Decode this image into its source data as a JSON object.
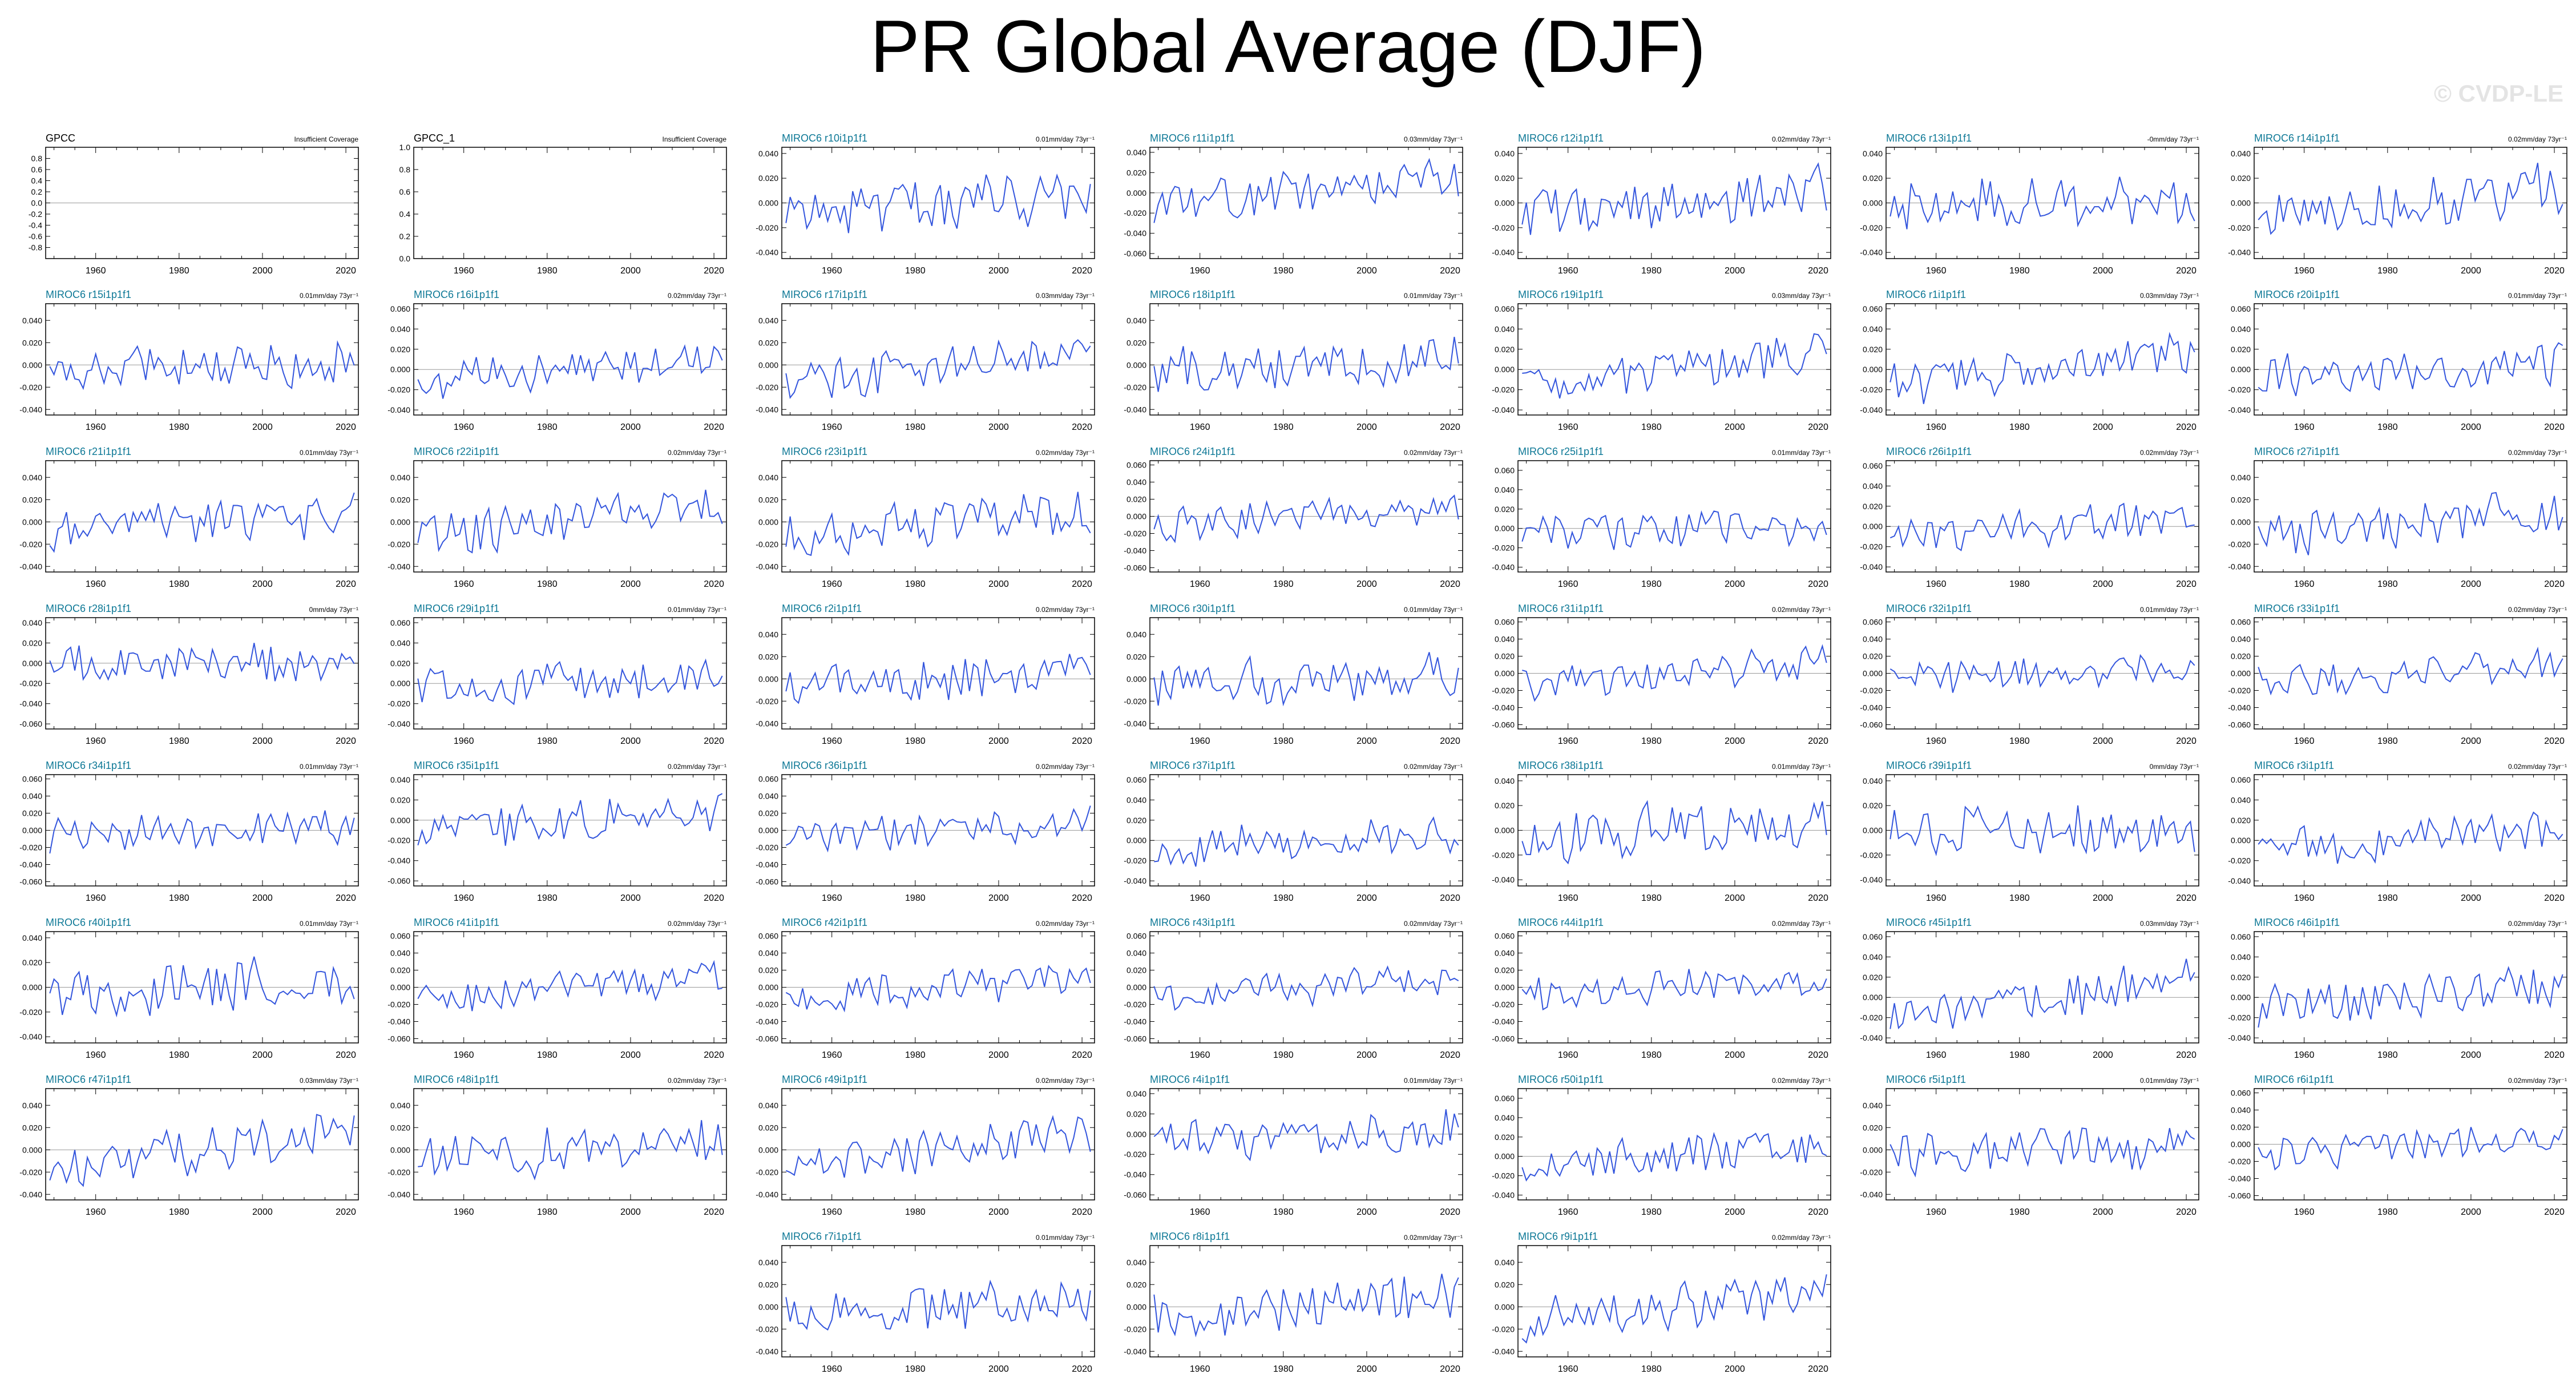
{
  "page": {
    "title": "PR Global Average (DJF)",
    "watermark": "© CVDP-LE"
  },
  "chart_data": [
    {
      "type": "line",
      "id": "gpcc",
      "title": "GPCC",
      "title_color": "#000000",
      "right_label": "Insufficient Coverage",
      "ylim": [
        -1,
        1
      ],
      "yticks": [
        "-0.8",
        "-0.6",
        "-0.4",
        "-0.2",
        "0.0",
        "0.2",
        "0.4",
        "0.6",
        "0.8"
      ],
      "xticks": [
        "1960",
        "1980",
        "2000",
        "2020"
      ],
      "xlim": [
        1948,
        2023
      ],
      "series": [],
      "zero_line": true
    },
    {
      "type": "line",
      "id": "gpcc1",
      "title": "GPCC_1",
      "title_color": "#000000",
      "right_label": "Insufficient Coverage",
      "ylim": [
        0,
        1
      ],
      "yticks": [
        "0.0",
        "0.2",
        "0.4",
        "0.6",
        "0.8",
        "1.0"
      ],
      "xticks": [
        "1960",
        "1980",
        "2000",
        "2020"
      ],
      "xlim": [
        1948,
        2023
      ],
      "series": [],
      "zero_line": false
    },
    {
      "type": "line",
      "id": "r10",
      "title": "MIROC6 r10i1p1f1",
      "right_label": "0.01mm/day 73yr⁻¹",
      "ylim": [
        -0.045,
        0.045
      ],
      "yticks": [
        "-0.040",
        "-0.020",
        "0.000",
        "0.020",
        "0.040"
      ],
      "seed": 10,
      "trend": 0.01
    },
    {
      "type": "line",
      "id": "r11",
      "title": "MIROC6 r11i1p1f1",
      "right_label": "0.03mm/day 73yr⁻¹",
      "ylim": [
        -0.065,
        0.045
      ],
      "yticks": [
        "-0.060",
        "-0.040",
        "-0.020",
        "0.000",
        "0.020",
        "0.040"
      ],
      "seed": 11,
      "trend": 0.03
    },
    {
      "type": "line",
      "id": "r12",
      "title": "MIROC6 r12i1p1f1",
      "right_label": "0.02mm/day 73yr⁻¹",
      "ylim": [
        -0.045,
        0.045
      ],
      "yticks": [
        "-0.040",
        "-0.020",
        "0.000",
        "0.020",
        "0.040"
      ],
      "seed": 12,
      "trend": 0.02
    },
    {
      "type": "line",
      "id": "r13",
      "title": "MIROC6 r13i1p1f1",
      "right_label": "-0mm/day 73yr⁻¹",
      "ylim": [
        -0.045,
        0.045
      ],
      "yticks": [
        "-0.040",
        "-0.020",
        "0.000",
        "0.020",
        "0.040"
      ],
      "seed": 13,
      "trend": 0.0
    },
    {
      "type": "line",
      "id": "r14",
      "title": "MIROC6 r14i1p1f1",
      "right_label": "0.02mm/day 73yr⁻¹",
      "ylim": [
        -0.045,
        0.045
      ],
      "yticks": [
        "-0.040",
        "-0.020",
        "0.000",
        "0.020",
        "0.040"
      ],
      "seed": 14,
      "trend": 0.02
    },
    {
      "type": "line",
      "id": "r15",
      "title": "MIROC6 r15i1p1f1",
      "right_label": "0.01mm/day 73yr⁻¹",
      "ylim": [
        -0.045,
        0.055
      ],
      "yticks": [
        "-0.040",
        "-0.020",
        "0.000",
        "0.020",
        "0.040"
      ],
      "seed": 15,
      "trend": 0.01
    },
    {
      "type": "line",
      "id": "r16",
      "title": "MIROC6 r16i1p1f1",
      "right_label": "0.02mm/day 73yr⁻¹",
      "ylim": [
        -0.045,
        0.065
      ],
      "yticks": [
        "-0.040",
        "-0.020",
        "0.000",
        "0.020",
        "0.040",
        "0.060"
      ],
      "seed": 16,
      "trend": 0.02
    },
    {
      "type": "line",
      "id": "r17",
      "title": "MIROC6 r17i1p1f1",
      "right_label": "0.03mm/day 73yr⁻¹",
      "ylim": [
        -0.045,
        0.055
      ],
      "yticks": [
        "-0.040",
        "-0.020",
        "0.000",
        "0.020",
        "0.040"
      ],
      "seed": 17,
      "trend": 0.03
    },
    {
      "type": "line",
      "id": "r18",
      "title": "MIROC6 r18i1p1f1",
      "right_label": "0.01mm/day 73yr⁻¹",
      "ylim": [
        -0.045,
        0.055
      ],
      "yticks": [
        "-0.040",
        "-0.020",
        "0.000",
        "0.020",
        "0.040"
      ],
      "seed": 18,
      "trend": 0.01
    },
    {
      "type": "line",
      "id": "r19",
      "title": "MIROC6 r19i1p1f1",
      "right_label": "0.03mm/day 73yr⁻¹",
      "ylim": [
        -0.045,
        0.065
      ],
      "yticks": [
        "-0.040",
        "-0.020",
        "0.000",
        "0.020",
        "0.040",
        "0.060"
      ],
      "seed": 19,
      "trend": 0.03
    },
    {
      "type": "line",
      "id": "r1",
      "title": "MIROC6 r1i1p1f1",
      "right_label": "0.03mm/day 73yr⁻¹",
      "ylim": [
        -0.045,
        0.065
      ],
      "yticks": [
        "-0.040",
        "-0.020",
        "0.000",
        "0.020",
        "0.040",
        "0.060"
      ],
      "seed": 1,
      "trend": 0.03
    },
    {
      "type": "line",
      "id": "r20",
      "title": "MIROC6 r20i1p1f1",
      "right_label": "0.01mm/day 73yr⁻¹",
      "ylim": [
        -0.045,
        0.065
      ],
      "yticks": [
        "-0.040",
        "-0.020",
        "0.000",
        "0.020",
        "0.040",
        "0.060"
      ],
      "seed": 20,
      "trend": 0.01
    },
    {
      "type": "line",
      "id": "r21",
      "title": "MIROC6 r21i1p1f1",
      "right_label": "0.01mm/day 73yr⁻¹",
      "ylim": [
        -0.045,
        0.055
      ],
      "yticks": [
        "-0.040",
        "-0.020",
        "0.000",
        "0.020",
        "0.040"
      ],
      "seed": 21,
      "trend": 0.01
    },
    {
      "type": "line",
      "id": "r22",
      "title": "MIROC6 r22i1p1f1",
      "right_label": "0.02mm/day 73yr⁻¹",
      "ylim": [
        -0.045,
        0.055
      ],
      "yticks": [
        "-0.040",
        "-0.020",
        "0.000",
        "0.020",
        "0.040"
      ],
      "seed": 22,
      "trend": 0.02
    },
    {
      "type": "line",
      "id": "r23",
      "title": "MIROC6 r23i1p1f1",
      "right_label": "0.02mm/day 73yr⁻¹",
      "ylim": [
        -0.045,
        0.055
      ],
      "yticks": [
        "-0.040",
        "-0.020",
        "0.000",
        "0.020",
        "0.040"
      ],
      "seed": 23,
      "trend": 0.02
    },
    {
      "type": "line",
      "id": "r24",
      "title": "MIROC6 r24i1p1f1",
      "right_label": "0.02mm/day 73yr⁻¹",
      "ylim": [
        -0.065,
        0.065
      ],
      "yticks": [
        "-0.060",
        "-0.040",
        "-0.020",
        "0.000",
        "0.020",
        "0.040",
        "0.060"
      ],
      "seed": 24,
      "trend": 0.02
    },
    {
      "type": "line",
      "id": "r25",
      "title": "MIROC6 r25i1p1f1",
      "right_label": "0.01mm/day 73yr⁻¹",
      "ylim": [
        -0.045,
        0.07
      ],
      "yticks": [
        "-0.040",
        "-0.020",
        "0.000",
        "0.020",
        "0.040",
        "0.060"
      ],
      "seed": 25,
      "trend": 0.01
    },
    {
      "type": "line",
      "id": "r26",
      "title": "MIROC6 r26i1p1f1",
      "right_label": "0.02mm/day 73yr⁻¹",
      "ylim": [
        -0.045,
        0.065
      ],
      "yticks": [
        "-0.040",
        "-0.020",
        "0.000",
        "0.020",
        "0.040",
        "0.060"
      ],
      "seed": 26,
      "trend": 0.02
    },
    {
      "type": "line",
      "id": "r27",
      "title": "MIROC6 r27i1p1f1",
      "right_label": "0.02mm/day 73yr⁻¹",
      "ylim": [
        -0.045,
        0.055
      ],
      "yticks": [
        "-0.040",
        "-0.020",
        "0.000",
        "0.020",
        "0.040"
      ],
      "seed": 27,
      "trend": 0.02
    },
    {
      "type": "line",
      "id": "r28",
      "title": "MIROC6 r28i1p1f1",
      "right_label": "0mm/day 73yr⁻¹",
      "ylim": [
        -0.065,
        0.045
      ],
      "yticks": [
        "-0.060",
        "-0.040",
        "-0.020",
        "0.000",
        "0.020",
        "0.040"
      ],
      "seed": 28,
      "trend": 0.0
    },
    {
      "type": "line",
      "id": "r29",
      "title": "MIROC6 r29i1p1f1",
      "right_label": "0.01mm/day 73yr⁻¹",
      "ylim": [
        -0.045,
        0.065
      ],
      "yticks": [
        "-0.040",
        "-0.020",
        "0.000",
        "0.020",
        "0.040",
        "0.060"
      ],
      "seed": 29,
      "trend": 0.01
    },
    {
      "type": "line",
      "id": "r2",
      "title": "MIROC6 r2i1p1f1",
      "right_label": "0.02mm/day 73yr⁻¹",
      "ylim": [
        -0.045,
        0.055
      ],
      "yticks": [
        "-0.040",
        "-0.020",
        "0.000",
        "0.020",
        "0.040"
      ],
      "seed": 2,
      "trend": 0.02
    },
    {
      "type": "line",
      "id": "r30",
      "title": "MIROC6 r30i1p1f1",
      "right_label": "0.01mm/day 73yr⁻¹",
      "ylim": [
        -0.045,
        0.055
      ],
      "yticks": [
        "-0.040",
        "-0.020",
        "0.000",
        "0.020",
        "0.040"
      ],
      "seed": 30,
      "trend": 0.01
    },
    {
      "type": "line",
      "id": "r31",
      "title": "MIROC6 r31i1p1f1",
      "right_label": "0.02mm/day 73yr⁻¹",
      "ylim": [
        -0.065,
        0.065
      ],
      "yticks": [
        "-0.060",
        "-0.040",
        "-0.020",
        "0.000",
        "0.020",
        "0.040",
        "0.060"
      ],
      "seed": 31,
      "trend": 0.02
    },
    {
      "type": "line",
      "id": "r32",
      "title": "MIROC6 r32i1p1f1",
      "right_label": "0.01mm/day 73yr⁻¹",
      "ylim": [
        -0.065,
        0.065
      ],
      "yticks": [
        "-0.060",
        "-0.040",
        "-0.020",
        "0.000",
        "0.020",
        "0.040",
        "0.060"
      ],
      "seed": 32,
      "trend": 0.01
    },
    {
      "type": "line",
      "id": "r33",
      "title": "MIROC6 r33i1p1f1",
      "right_label": "0.02mm/day 73yr⁻¹",
      "ylim": [
        -0.065,
        0.065
      ],
      "yticks": [
        "-0.060",
        "-0.040",
        "-0.020",
        "0.000",
        "0.020",
        "0.040",
        "0.060"
      ],
      "seed": 33,
      "trend": 0.02
    },
    {
      "type": "line",
      "id": "r34",
      "title": "MIROC6 r34i1p1f1",
      "right_label": "0.01mm/day 73yr⁻¹",
      "ylim": [
        -0.065,
        0.065
      ],
      "yticks": [
        "-0.060",
        "-0.040",
        "-0.020",
        "0.000",
        "0.020",
        "0.040",
        "0.060"
      ],
      "seed": 34,
      "trend": 0.01
    },
    {
      "type": "line",
      "id": "r35",
      "title": "MIROC6 r35i1p1f1",
      "right_label": "0.02mm/day 73yr⁻¹",
      "ylim": [
        -0.065,
        0.045
      ],
      "yticks": [
        "-0.060",
        "-0.040",
        "-0.020",
        "0.000",
        "0.020",
        "0.040"
      ],
      "seed": 35,
      "trend": 0.02
    },
    {
      "type": "line",
      "id": "r36",
      "title": "MIROC6 r36i1p1f1",
      "right_label": "0.02mm/day 73yr⁻¹",
      "ylim": [
        -0.065,
        0.065
      ],
      "yticks": [
        "-0.060",
        "-0.040",
        "-0.020",
        "0.000",
        "0.020",
        "0.040",
        "0.060"
      ],
      "seed": 36,
      "trend": 0.02
    },
    {
      "type": "line",
      "id": "r37",
      "title": "MIROC6 r37i1p1f1",
      "right_label": "0.02mm/day 73yr⁻¹",
      "ylim": [
        -0.045,
        0.065
      ],
      "yticks": [
        "-0.040",
        "-0.020",
        "0.000",
        "0.020",
        "0.040",
        "0.060"
      ],
      "seed": 37,
      "trend": 0.02
    },
    {
      "type": "line",
      "id": "r38",
      "title": "MIROC6 r38i1p1f1",
      "right_label": "0.01mm/day 73yr⁻¹",
      "ylim": [
        -0.045,
        0.045
      ],
      "yticks": [
        "-0.040",
        "-0.020",
        "0.000",
        "0.020",
        "0.040"
      ],
      "seed": 38,
      "trend": 0.01
    },
    {
      "type": "line",
      "id": "r39",
      "title": "MIROC6 r39i1p1f1",
      "right_label": "0mm/day 73yr⁻¹",
      "ylim": [
        -0.045,
        0.045
      ],
      "yticks": [
        "-0.040",
        "-0.020",
        "0.000",
        "0.020",
        "0.040"
      ],
      "seed": 39,
      "trend": 0.0
    },
    {
      "type": "line",
      "id": "r3",
      "title": "MIROC6 r3i1p1f1",
      "right_label": "0.02mm/day 73yr⁻¹",
      "ylim": [
        -0.045,
        0.065
      ],
      "yticks": [
        "-0.040",
        "-0.020",
        "0.000",
        "0.020",
        "0.040",
        "0.060"
      ],
      "seed": 3,
      "trend": 0.02
    },
    {
      "type": "line",
      "id": "r40",
      "title": "MIROC6 r40i1p1f1",
      "right_label": "0.01mm/day 73yr⁻¹",
      "ylim": [
        -0.045,
        0.045
      ],
      "yticks": [
        "-0.040",
        "-0.020",
        "0.000",
        "0.020",
        "0.040"
      ],
      "seed": 40,
      "trend": 0.01
    },
    {
      "type": "line",
      "id": "r41",
      "title": "MIROC6 r41i1p1f1",
      "right_label": "0.02mm/day 73yr⁻¹",
      "ylim": [
        -0.065,
        0.065
      ],
      "yticks": [
        "-0.060",
        "-0.040",
        "-0.020",
        "0.000",
        "0.020",
        "0.040",
        "0.060"
      ],
      "seed": 41,
      "trend": 0.02
    },
    {
      "type": "line",
      "id": "r42",
      "title": "MIROC6 r42i1p1f1",
      "right_label": "0.02mm/day 73yr⁻¹",
      "ylim": [
        -0.065,
        0.065
      ],
      "yticks": [
        "-0.060",
        "-0.040",
        "-0.020",
        "0.000",
        "0.020",
        "0.040",
        "0.060"
      ],
      "seed": 42,
      "trend": 0.02
    },
    {
      "type": "line",
      "id": "r43",
      "title": "MIROC6 r43i1p1f1",
      "right_label": "0.02mm/day 73yr⁻¹",
      "ylim": [
        -0.065,
        0.065
      ],
      "yticks": [
        "-0.060",
        "-0.040",
        "-0.020",
        "0.000",
        "0.020",
        "0.040",
        "0.060"
      ],
      "seed": 43,
      "trend": 0.02
    },
    {
      "type": "line",
      "id": "r44",
      "title": "MIROC6 r44i1p1f1",
      "right_label": "0.02mm/day 73yr⁻¹",
      "ylim": [
        -0.065,
        0.065
      ],
      "yticks": [
        "-0.060",
        "-0.040",
        "-0.020",
        "0.000",
        "0.020",
        "0.040",
        "0.060"
      ],
      "seed": 44,
      "trend": 0.02
    },
    {
      "type": "line",
      "id": "r45",
      "title": "MIROC6 r45i1p1f1",
      "right_label": "0.03mm/day 73yr⁻¹",
      "ylim": [
        -0.045,
        0.065
      ],
      "yticks": [
        "-0.040",
        "-0.020",
        "0.000",
        "0.020",
        "0.040",
        "0.060"
      ],
      "seed": 45,
      "trend": 0.03
    },
    {
      "type": "line",
      "id": "r46",
      "title": "MIROC6 r46i1p1f1",
      "right_label": "0.02mm/day 73yr⁻¹",
      "ylim": [
        -0.045,
        0.065
      ],
      "yticks": [
        "-0.040",
        "-0.020",
        "0.000",
        "0.020",
        "0.040",
        "0.060"
      ],
      "seed": 46,
      "trend": 0.02
    },
    {
      "type": "line",
      "id": "r47",
      "title": "MIROC6 r47i1p1f1",
      "right_label": "0.03mm/day 73yr⁻¹",
      "ylim": [
        -0.045,
        0.055
      ],
      "yticks": [
        "-0.040",
        "-0.020",
        "0.000",
        "0.020",
        "0.040"
      ],
      "seed": 47,
      "trend": 0.03
    },
    {
      "type": "line",
      "id": "r48",
      "title": "MIROC6 r48i1p1f1",
      "right_label": "0.02mm/day 73yr⁻¹",
      "ylim": [
        -0.045,
        0.055
      ],
      "yticks": [
        "-0.040",
        "-0.020",
        "0.000",
        "0.020",
        "0.040"
      ],
      "seed": 48,
      "trend": 0.02
    },
    {
      "type": "line",
      "id": "r49",
      "title": "MIROC6 r49i1p1f1",
      "right_label": "0.02mm/day 73yr⁻¹",
      "ylim": [
        -0.045,
        0.055
      ],
      "yticks": [
        "-0.040",
        "-0.020",
        "0.000",
        "0.020",
        "0.040"
      ],
      "seed": 49,
      "trend": 0.02
    },
    {
      "type": "line",
      "id": "r4",
      "title": "MIROC6 r4i1p1f1",
      "right_label": "0.01mm/day 73yr⁻¹",
      "ylim": [
        -0.065,
        0.045
      ],
      "yticks": [
        "-0.060",
        "-0.040",
        "-0.020",
        "0.000",
        "0.020",
        "0.040"
      ],
      "seed": 4,
      "trend": 0.01
    },
    {
      "type": "line",
      "id": "r50",
      "title": "MIROC6 r50i1p1f1",
      "right_label": "0.02mm/day 73yr⁻¹",
      "ylim": [
        -0.045,
        0.07
      ],
      "yticks": [
        "-0.040",
        "-0.020",
        "0.000",
        "0.020",
        "0.040",
        "0.060"
      ],
      "seed": 50,
      "trend": 0.02
    },
    {
      "type": "line",
      "id": "r5",
      "title": "MIROC6 r5i1p1f1",
      "right_label": "0.01mm/day 73yr⁻¹",
      "ylim": [
        -0.045,
        0.055
      ],
      "yticks": [
        "-0.040",
        "-0.020",
        "0.000",
        "0.020",
        "0.040"
      ],
      "seed": 5,
      "trend": 0.01
    },
    {
      "type": "line",
      "id": "r6",
      "title": "MIROC6 r6i1p1f1",
      "right_label": "0.02mm/day 73yr⁻¹",
      "ylim": [
        -0.065,
        0.065
      ],
      "yticks": [
        "-0.060",
        "-0.040",
        "-0.020",
        "0.000",
        "0.020",
        "0.040",
        "0.060"
      ],
      "seed": 6,
      "trend": 0.02
    },
    {
      "type": "line",
      "id": "r7",
      "title": "MIROC6 r7i1p1f1",
      "right_label": "0.01mm/day 73yr⁻¹",
      "ylim": [
        -0.045,
        0.055
      ],
      "yticks": [
        "-0.040",
        "-0.020",
        "0.000",
        "0.020",
        "0.040"
      ],
      "seed": 7,
      "trend": 0.01
    },
    {
      "type": "line",
      "id": "r8",
      "title": "MIROC6 r8i1p1f1",
      "right_label": "0.02mm/day 73yr⁻¹",
      "ylim": [
        -0.045,
        0.055
      ],
      "yticks": [
        "-0.040",
        "-0.020",
        "0.000",
        "0.020",
        "0.040"
      ],
      "seed": 8,
      "trend": 0.02
    },
    {
      "type": "line",
      "id": "r9",
      "title": "MIROC6 r9i1p1f1",
      "right_label": "0.02mm/day 73yr⁻¹",
      "ylim": [
        -0.045,
        0.055
      ],
      "yticks": [
        "-0.040",
        "-0.020",
        "0.000",
        "0.020",
        "0.040"
      ],
      "seed": 9,
      "trend": 0.02
    }
  ],
  "style": {
    "series_color": "#3355dd",
    "title_color": "#0d7896",
    "axis_color": "#000000",
    "zero_line_color": "#999999"
  },
  "common": {
    "xticks": [
      "1960",
      "1980",
      "2000",
      "2020"
    ],
    "xlim": [
      1948,
      2023
    ],
    "years": [
      1949,
      2022
    ]
  }
}
